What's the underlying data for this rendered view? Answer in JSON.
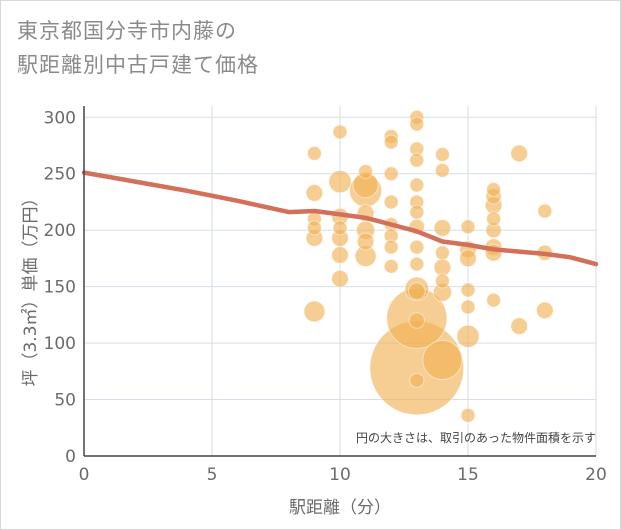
{
  "title_lines": [
    "東京都国分寺市内藤の",
    "駅距離別中古戸建て価格"
  ],
  "chart_data": {
    "type": "scatter",
    "title": "東京都国分寺市内藤の駅距離別中古戸建て価格",
    "xlabel": "駅距離（分）",
    "ylabel": "坪（3.3㎡）単価（万円）",
    "xlim": [
      0,
      20
    ],
    "ylim": [
      0,
      310
    ],
    "xticks": [
      "0",
      "5",
      "10",
      "15",
      "20"
    ],
    "yticks": [
      "0",
      "50",
      "100",
      "150",
      "200",
      "250",
      "300"
    ],
    "grid": true,
    "annotation": "円の大きさは、取引のあった物件面積を示す",
    "bubble_color": "#f0b050",
    "trend_color": "#d2705a",
    "series": [
      {
        "kind": "bubble",
        "points": [
          {
            "x": 9,
            "y": 268,
            "s": 1
          },
          {
            "x": 9,
            "y": 233,
            "s": 1.2
          },
          {
            "x": 9,
            "y": 210,
            "s": 1
          },
          {
            "x": 9,
            "y": 202,
            "s": 1
          },
          {
            "x": 9,
            "y": 193,
            "s": 1.2
          },
          {
            "x": 9,
            "y": 128,
            "s": 1.5
          },
          {
            "x": 10,
            "y": 287,
            "s": 1
          },
          {
            "x": 10,
            "y": 243,
            "s": 1.6
          },
          {
            "x": 10,
            "y": 212,
            "s": 1.2
          },
          {
            "x": 10,
            "y": 202,
            "s": 1
          },
          {
            "x": 10,
            "y": 193,
            "s": 1.2
          },
          {
            "x": 10,
            "y": 178,
            "s": 1.2
          },
          {
            "x": 10,
            "y": 157,
            "s": 1.2
          },
          {
            "x": 11,
            "y": 252,
            "s": 1
          },
          {
            "x": 11,
            "y": 240,
            "s": 1.8
          },
          {
            "x": 11,
            "y": 235,
            "s": 2.3
          },
          {
            "x": 11,
            "y": 215,
            "s": 1.2
          },
          {
            "x": 11,
            "y": 200,
            "s": 1.3
          },
          {
            "x": 11,
            "y": 190,
            "s": 1.2
          },
          {
            "x": 11,
            "y": 177,
            "s": 1.5
          },
          {
            "x": 12,
            "y": 283,
            "s": 1
          },
          {
            "x": 12,
            "y": 278,
            "s": 1
          },
          {
            "x": 12,
            "y": 250,
            "s": 1
          },
          {
            "x": 12,
            "y": 225,
            "s": 1
          },
          {
            "x": 12,
            "y": 205,
            "s": 1
          },
          {
            "x": 12,
            "y": 195,
            "s": 1
          },
          {
            "x": 12,
            "y": 185,
            "s": 1
          },
          {
            "x": 12,
            "y": 168,
            "s": 1
          },
          {
            "x": 13,
            "y": 300,
            "s": 1
          },
          {
            "x": 13,
            "y": 294,
            "s": 1
          },
          {
            "x": 13,
            "y": 272,
            "s": 1
          },
          {
            "x": 13,
            "y": 262,
            "s": 1
          },
          {
            "x": 13,
            "y": 240,
            "s": 1
          },
          {
            "x": 13,
            "y": 225,
            "s": 1
          },
          {
            "x": 13,
            "y": 216,
            "s": 1
          },
          {
            "x": 13,
            "y": 203,
            "s": 1.1
          },
          {
            "x": 13,
            "y": 185,
            "s": 1
          },
          {
            "x": 13,
            "y": 170,
            "s": 1
          },
          {
            "x": 13,
            "y": 148,
            "s": 1.7
          },
          {
            "x": 13,
            "y": 146,
            "s": 1.2
          },
          {
            "x": 13,
            "y": 122,
            "s": 4.3
          },
          {
            "x": 13,
            "y": 120,
            "s": 1.1
          },
          {
            "x": 13,
            "y": 78,
            "s": 6.7
          },
          {
            "x": 13,
            "y": 67,
            "s": 1
          },
          {
            "x": 14,
            "y": 267,
            "s": 1
          },
          {
            "x": 14,
            "y": 253,
            "s": 1
          },
          {
            "x": 14,
            "y": 202,
            "s": 1.2
          },
          {
            "x": 14,
            "y": 180,
            "s": 1
          },
          {
            "x": 14,
            "y": 167,
            "s": 1.2
          },
          {
            "x": 14,
            "y": 155,
            "s": 1
          },
          {
            "x": 14,
            "y": 145,
            "s": 1.3
          },
          {
            "x": 14,
            "y": 85,
            "s": 2.8
          },
          {
            "x": 15,
            "y": 203,
            "s": 1
          },
          {
            "x": 15,
            "y": 183,
            "s": 1.2
          },
          {
            "x": 15,
            "y": 175,
            "s": 1.2
          },
          {
            "x": 15,
            "y": 147,
            "s": 1
          },
          {
            "x": 15,
            "y": 132,
            "s": 1
          },
          {
            "x": 15,
            "y": 106,
            "s": 1.6
          },
          {
            "x": 15,
            "y": 36,
            "s": 1
          },
          {
            "x": 16,
            "y": 236,
            "s": 1
          },
          {
            "x": 16,
            "y": 230,
            "s": 1.1
          },
          {
            "x": 16,
            "y": 222,
            "s": 1.2
          },
          {
            "x": 16,
            "y": 210,
            "s": 1
          },
          {
            "x": 16,
            "y": 200,
            "s": 1.1
          },
          {
            "x": 16,
            "y": 185,
            "s": 1.2
          },
          {
            "x": 16,
            "y": 180,
            "s": 1.2
          },
          {
            "x": 16,
            "y": 138,
            "s": 1
          },
          {
            "x": 17,
            "y": 268,
            "s": 1.2
          },
          {
            "x": 17,
            "y": 115,
            "s": 1.2
          },
          {
            "x": 18,
            "y": 217,
            "s": 1
          },
          {
            "x": 18,
            "y": 180,
            "s": 1.1
          },
          {
            "x": 18,
            "y": 129,
            "s": 1.2
          }
        ]
      },
      {
        "kind": "line",
        "x": [
          0,
          2,
          4,
          6,
          8,
          9,
          10,
          11,
          12,
          13,
          14,
          15,
          16,
          17,
          18,
          19,
          20
        ],
        "y": [
          251,
          243,
          235,
          226,
          216,
          217,
          214,
          211,
          205,
          199,
          190,
          187,
          183,
          181,
          179,
          176,
          170
        ]
      }
    ]
  }
}
